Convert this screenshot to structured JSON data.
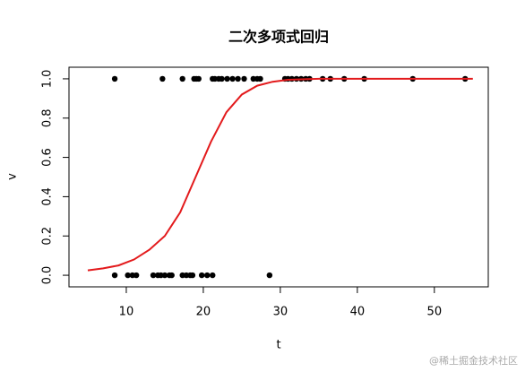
{
  "chart_data": {
    "type": "scatter",
    "title": "二次多项式回归",
    "x_label": "t",
    "y_label": "v",
    "xlim": [
      2.56,
      57.0
    ],
    "ylim": [
      -0.059,
      1.059
    ],
    "xticks": [
      10,
      20,
      30,
      40,
      50
    ],
    "yticks": [
      {
        "value": 0,
        "label": "0.0"
      },
      0.2,
      0.4,
      0.6,
      0.8,
      {
        "value": 1,
        "label": "1.0"
      }
    ],
    "grid": false,
    "series": [
      {
        "color": "#000000",
        "style": "points",
        "x": [
          8.5,
          14.7,
          17.3,
          18.8,
          19.1,
          19.4,
          21.2,
          21.5,
          22.0,
          22.4,
          23.1,
          23.8,
          24.5,
          25.3,
          26.5,
          27.0,
          27.4,
          30.6,
          31.0,
          31.5,
          32.1,
          32.7,
          33.3,
          33.8,
          35.5,
          36.5,
          38.3,
          40.9,
          47.2,
          54.0,
          8.5,
          10.2,
          10.8,
          11.3,
          13.5,
          14.1,
          14.5,
          15.0,
          15.6,
          15.9,
          17.3,
          17.8,
          18.3,
          18.6,
          19.8,
          20.5,
          21.2,
          28.6
        ],
        "values": [
          1,
          1,
          1,
          1,
          1,
          1,
          1,
          1,
          1,
          1,
          1,
          1,
          1,
          1,
          1,
          1,
          1,
          1,
          1,
          1,
          1,
          1,
          1,
          1,
          1,
          1,
          1,
          1,
          1,
          1,
          0,
          0,
          0,
          0,
          0,
          0,
          0,
          0,
          0,
          0,
          0,
          0,
          0,
          0,
          0,
          0,
          0,
          0
        ]
      },
      {
        "color": "#e31a1c",
        "style": "line",
        "x": [
          5,
          7,
          9,
          11,
          13,
          15,
          17,
          19,
          21,
          23,
          25,
          27,
          29,
          31,
          35,
          40,
          45,
          50,
          55
        ],
        "values": [
          0.025,
          0.035,
          0.05,
          0.08,
          0.13,
          0.2,
          0.32,
          0.5,
          0.68,
          0.83,
          0.92,
          0.965,
          0.985,
          0.995,
          1.0,
          1.0,
          1.0,
          1.0,
          1.0
        ]
      }
    ],
    "watermark": "@稀土掘金技术社区"
  }
}
